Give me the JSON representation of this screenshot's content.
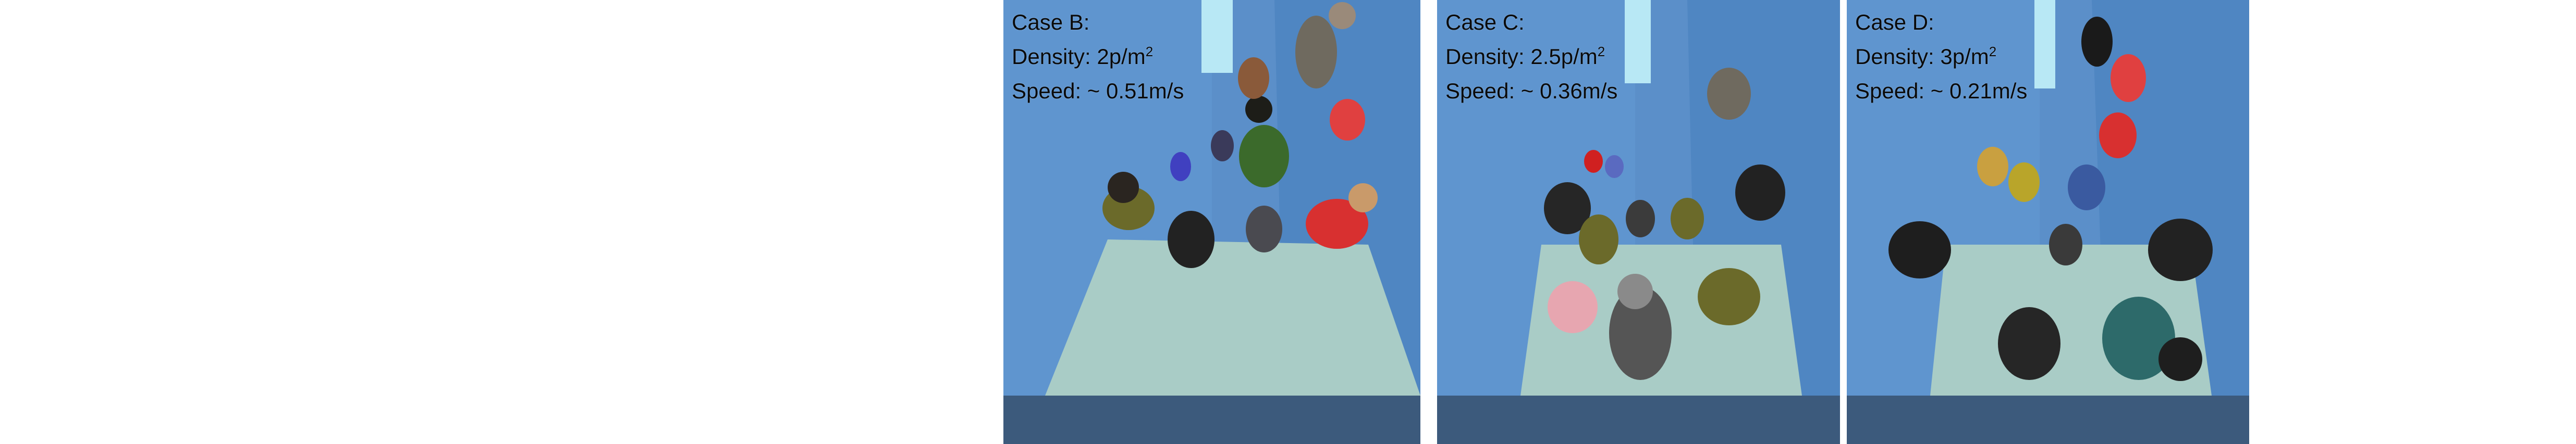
{
  "panels": [
    {
      "case_label": "Case B:",
      "density_prefix": "Density: 2p/m",
      "density_exp": "2",
      "speed": "Speed: ~ 0.51m/s"
    },
    {
      "case_label": "Case C:",
      "density_prefix": "Density: 2.5p/m",
      "density_exp": "2",
      "speed": "Speed: ~ 0.36m/s"
    },
    {
      "case_label": "Case D:",
      "density_prefix": "Density: 3p/m",
      "density_exp": "2",
      "speed": "Speed: ~ 0.21m/s"
    }
  ],
  "colors": {
    "wall_left": "#5b8fc9",
    "wall_right": "#4f86c2",
    "floor": "#a9ccc6",
    "bottom_band": "#3c5a7c",
    "sky": "#b8e8f5"
  }
}
